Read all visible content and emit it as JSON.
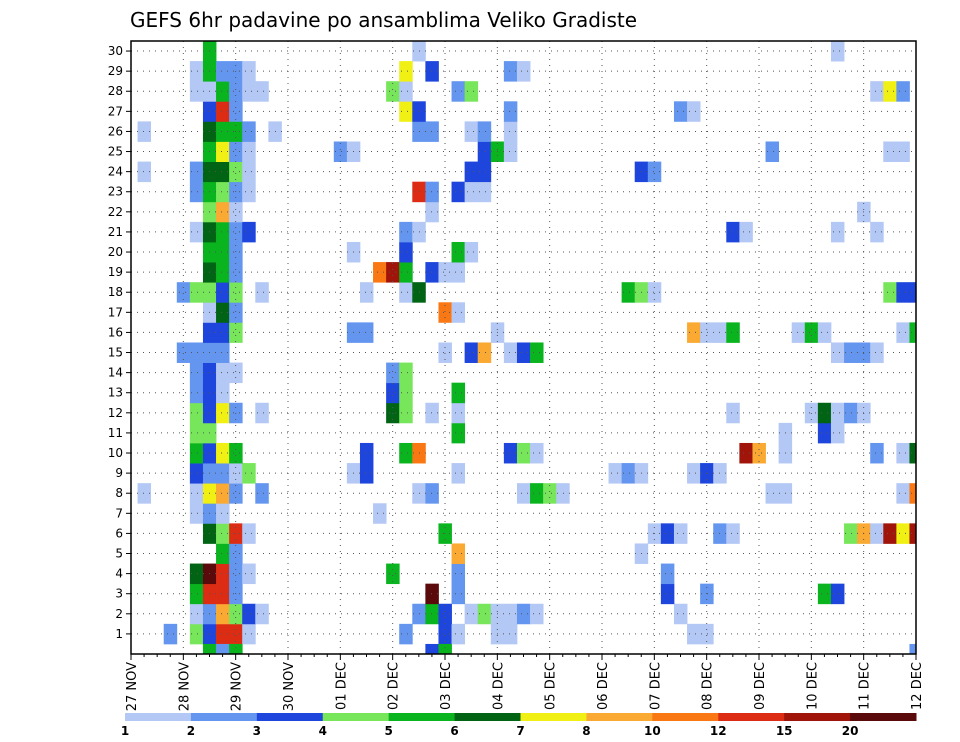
{
  "chart_data": {
    "type": "heatmap",
    "title": "GEFS 6hr padavine po ansamblima Veliko Gradiste",
    "y_ticks": [
      1,
      2,
      3,
      4,
      5,
      6,
      7,
      8,
      9,
      10,
      11,
      12,
      13,
      14,
      15,
      16,
      17,
      18,
      19,
      20,
      21,
      22,
      23,
      24,
      25,
      26,
      27,
      28,
      29,
      30
    ],
    "x_ticks": [
      "27 NOV",
      "28 NOV",
      "29 NOV",
      "30 NOV",
      "01 DEC",
      "02 DEC",
      "03 DEC",
      "04 DEC",
      "05 DEC",
      "06 DEC",
      "07 DEC",
      "08 DEC",
      "09 DEC",
      "10 DEC",
      "11 DEC",
      "12 DEC"
    ],
    "colorbar": {
      "labels": [
        "1",
        "2",
        "3",
        "4",
        "5",
        "6",
        "7",
        "8",
        "10",
        "12",
        "15",
        "20"
      ],
      "colors": [
        "#b4c8f5",
        "#6496f0",
        "#1e46dc",
        "#78e65a",
        "#0ab41e",
        "#006414",
        "#f0f014",
        "#faaa32",
        "#fa7814",
        "#dc2d14",
        "#a0140a",
        "#5a0a0a"
      ]
    },
    "step_hours": 6,
    "members_axis": "y",
    "time_axis": "x",
    "grid": true,
    "cells": [
      [
        1,
        3,
        2
      ],
      [
        1,
        5,
        4
      ],
      [
        1,
        6,
        3
      ],
      [
        1,
        7,
        10
      ],
      [
        1,
        8,
        10
      ],
      [
        1,
        9,
        1
      ],
      [
        1,
        21,
        2
      ],
      [
        1,
        24,
        3
      ],
      [
        1,
        25,
        1
      ],
      [
        1,
        28,
        1
      ],
      [
        1,
        29,
        1
      ],
      [
        1,
        43,
        1
      ],
      [
        1,
        44,
        1
      ],
      [
        2,
        5,
        1
      ],
      [
        2,
        6,
        2
      ],
      [
        2,
        7,
        8
      ],
      [
        2,
        8,
        4
      ],
      [
        2,
        9,
        3
      ],
      [
        2,
        10,
        1
      ],
      [
        2,
        22,
        2
      ],
      [
        2,
        23,
        5
      ],
      [
        2,
        24,
        3
      ],
      [
        2,
        26,
        1
      ],
      [
        2,
        27,
        4
      ],
      [
        2,
        28,
        1
      ],
      [
        2,
        29,
        1
      ],
      [
        2,
        30,
        2
      ],
      [
        2,
        31,
        1
      ],
      [
        2,
        42,
        1
      ],
      [
        3,
        5,
        5
      ],
      [
        3,
        6,
        10
      ],
      [
        3,
        7,
        10
      ],
      [
        3,
        8,
        2
      ],
      [
        3,
        23,
        12
      ],
      [
        3,
        25,
        2
      ],
      [
        3,
        41,
        3
      ],
      [
        3,
        44,
        2
      ],
      [
        3,
        53,
        5
      ],
      [
        3,
        54,
        3
      ],
      [
        4,
        5,
        6
      ],
      [
        4,
        6,
        12
      ],
      [
        4,
        7,
        10
      ],
      [
        4,
        8,
        2
      ],
      [
        4,
        9,
        1
      ],
      [
        4,
        20,
        5
      ],
      [
        4,
        25,
        2
      ],
      [
        4,
        41,
        2
      ],
      [
        5,
        7,
        5
      ],
      [
        5,
        8,
        2
      ],
      [
        5,
        25,
        8
      ],
      [
        5,
        39,
        1
      ],
      [
        6,
        6,
        6
      ],
      [
        6,
        7,
        4
      ],
      [
        6,
        8,
        10
      ],
      [
        6,
        9,
        1
      ],
      [
        6,
        24,
        5
      ],
      [
        6,
        40,
        1
      ],
      [
        6,
        41,
        3
      ],
      [
        6,
        42,
        1
      ],
      [
        6,
        45,
        2
      ],
      [
        6,
        46,
        1
      ],
      [
        6,
        55,
        4
      ],
      [
        6,
        56,
        8
      ],
      [
        6,
        57,
        1
      ],
      [
        6,
        58,
        11
      ],
      [
        6,
        59,
        7
      ],
      [
        6,
        60,
        11
      ],
      [
        7,
        5,
        1
      ],
      [
        7,
        6,
        2
      ],
      [
        7,
        7,
        1
      ],
      [
        7,
        19,
        1
      ],
      [
        8,
        1,
        1
      ],
      [
        8,
        5,
        1
      ],
      [
        8,
        6,
        7
      ],
      [
        8,
        7,
        8
      ],
      [
        8,
        8,
        2
      ],
      [
        8,
        10,
        2
      ],
      [
        8,
        22,
        1
      ],
      [
        8,
        23,
        2
      ],
      [
        8,
        30,
        1
      ],
      [
        8,
        31,
        5
      ],
      [
        8,
        32,
        4
      ],
      [
        8,
        33,
        1
      ],
      [
        8,
        49,
        1
      ],
      [
        8,
        50,
        1
      ],
      [
        8,
        59,
        1
      ],
      [
        8,
        60,
        9
      ],
      [
        9,
        5,
        3
      ],
      [
        9,
        6,
        2
      ],
      [
        9,
        7,
        2
      ],
      [
        9,
        8,
        1
      ],
      [
        9,
        9,
        4
      ],
      [
        9,
        17,
        1
      ],
      [
        9,
        18,
        3
      ],
      [
        9,
        25,
        1
      ],
      [
        9,
        37,
        1
      ],
      [
        9,
        38,
        2
      ],
      [
        9,
        39,
        1
      ],
      [
        9,
        43,
        1
      ],
      [
        9,
        44,
        3
      ],
      [
        9,
        45,
        1
      ],
      [
        10,
        5,
        5
      ],
      [
        10,
        6,
        3
      ],
      [
        10,
        7,
        7
      ],
      [
        10,
        8,
        5
      ],
      [
        10,
        18,
        3
      ],
      [
        10,
        21,
        5
      ],
      [
        10,
        22,
        9
      ],
      [
        10,
        29,
        3
      ],
      [
        10,
        30,
        4
      ],
      [
        10,
        31,
        1
      ],
      [
        10,
        47,
        11
      ],
      [
        10,
        48,
        8
      ],
      [
        10,
        50,
        1
      ],
      [
        10,
        57,
        2
      ],
      [
        10,
        59,
        1
      ],
      [
        10,
        60,
        6
      ],
      [
        11,
        5,
        4
      ],
      [
        11,
        6,
        4
      ],
      [
        11,
        25,
        5
      ],
      [
        11,
        50,
        1
      ],
      [
        11,
        53,
        3
      ],
      [
        11,
        54,
        1
      ],
      [
        12,
        5,
        4
      ],
      [
        12,
        6,
        3
      ],
      [
        12,
        7,
        7
      ],
      [
        12,
        8,
        2
      ],
      [
        12,
        10,
        1
      ],
      [
        12,
        20,
        6
      ],
      [
        12,
        21,
        4
      ],
      [
        12,
        23,
        1
      ],
      [
        12,
        25,
        1
      ],
      [
        12,
        46,
        1
      ],
      [
        12,
        52,
        1
      ],
      [
        12,
        53,
        6
      ],
      [
        12,
        54,
        1
      ],
      [
        12,
        55,
        2
      ],
      [
        12,
        56,
        1
      ],
      [
        13,
        5,
        2
      ],
      [
        13,
        6,
        3
      ],
      [
        13,
        7,
        1
      ],
      [
        13,
        20,
        3
      ],
      [
        13,
        21,
        4
      ],
      [
        13,
        25,
        5
      ],
      [
        14,
        5,
        2
      ],
      [
        14,
        6,
        3
      ],
      [
        14,
        7,
        1
      ],
      [
        14,
        8,
        1
      ],
      [
        14,
        20,
        2
      ],
      [
        14,
        21,
        4
      ],
      [
        15,
        4,
        2
      ],
      [
        15,
        5,
        2
      ],
      [
        15,
        6,
        2
      ],
      [
        15,
        7,
        2
      ],
      [
        15,
        24,
        1
      ],
      [
        15,
        26,
        3
      ],
      [
        15,
        27,
        8
      ],
      [
        15,
        29,
        1
      ],
      [
        15,
        30,
        3
      ],
      [
        15,
        31,
        5
      ],
      [
        15,
        54,
        1
      ],
      [
        15,
        55,
        2
      ],
      [
        15,
        56,
        2
      ],
      [
        15,
        57,
        1
      ],
      [
        16,
        6,
        3
      ],
      [
        16,
        7,
        3
      ],
      [
        16,
        8,
        4
      ],
      [
        16,
        17,
        2
      ],
      [
        16,
        18,
        2
      ],
      [
        16,
        28,
        1
      ],
      [
        16,
        43,
        8
      ],
      [
        16,
        44,
        1
      ],
      [
        16,
        45,
        1
      ],
      [
        16,
        46,
        5
      ],
      [
        16,
        51,
        1
      ],
      [
        16,
        52,
        5
      ],
      [
        16,
        53,
        1
      ],
      [
        16,
        59,
        1
      ],
      [
        16,
        60,
        5
      ],
      [
        17,
        6,
        1
      ],
      [
        17,
        7,
        6
      ],
      [
        17,
        8,
        2
      ],
      [
        17,
        24,
        9
      ],
      [
        17,
        25,
        1
      ],
      [
        18,
        4,
        2
      ],
      [
        18,
        5,
        4
      ],
      [
        18,
        6,
        4
      ],
      [
        18,
        7,
        3
      ],
      [
        18,
        8,
        4
      ],
      [
        18,
        10,
        1
      ],
      [
        18,
        18,
        1
      ],
      [
        18,
        21,
        1
      ],
      [
        18,
        22,
        6
      ],
      [
        18,
        38,
        5
      ],
      [
        18,
        39,
        4
      ],
      [
        18,
        40,
        1
      ],
      [
        18,
        58,
        4
      ],
      [
        18,
        59,
        3
      ],
      [
        18,
        60,
        3
      ],
      [
        19,
        6,
        6
      ],
      [
        19,
        7,
        5
      ],
      [
        19,
        8,
        2
      ],
      [
        19,
        19,
        9
      ],
      [
        19,
        20,
        11
      ],
      [
        19,
        21,
        5
      ],
      [
        19,
        23,
        3
      ],
      [
        19,
        24,
        1
      ],
      [
        19,
        25,
        1
      ],
      [
        20,
        6,
        5
      ],
      [
        20,
        7,
        5
      ],
      [
        20,
        8,
        2
      ],
      [
        20,
        17,
        1
      ],
      [
        20,
        21,
        3
      ],
      [
        20,
        25,
        5
      ],
      [
        20,
        26,
        1
      ],
      [
        21,
        5,
        1
      ],
      [
        21,
        6,
        6
      ],
      [
        21,
        7,
        5
      ],
      [
        21,
        8,
        2
      ],
      [
        21,
        9,
        3
      ],
      [
        21,
        21,
        2
      ],
      [
        21,
        22,
        1
      ],
      [
        21,
        46,
        3
      ],
      [
        21,
        47,
        1
      ],
      [
        21,
        54,
        1
      ],
      [
        21,
        57,
        1
      ],
      [
        22,
        6,
        4
      ],
      [
        22,
        7,
        8
      ],
      [
        22,
        8,
        1
      ],
      [
        22,
        23,
        1
      ],
      [
        22,
        56,
        1
      ],
      [
        23,
        5,
        2
      ],
      [
        23,
        6,
        5
      ],
      [
        23,
        7,
        4
      ],
      [
        23,
        8,
        2
      ],
      [
        23,
        9,
        1
      ],
      [
        23,
        22,
        10
      ],
      [
        23,
        23,
        2
      ],
      [
        23,
        25,
        3
      ],
      [
        23,
        26,
        1
      ],
      [
        23,
        27,
        1
      ],
      [
        24,
        1,
        1
      ],
      [
        24,
        5,
        2
      ],
      [
        24,
        6,
        6
      ],
      [
        24,
        7,
        6
      ],
      [
        24,
        8,
        4
      ],
      [
        24,
        9,
        1
      ],
      [
        24,
        26,
        3
      ],
      [
        24,
        27,
        3
      ],
      [
        24,
        39,
        3
      ],
      [
        24,
        40,
        2
      ],
      [
        25,
        6,
        5
      ],
      [
        25,
        7,
        7
      ],
      [
        25,
        8,
        2
      ],
      [
        25,
        9,
        1
      ],
      [
        25,
        16,
        2
      ],
      [
        25,
        17,
        1
      ],
      [
        25,
        27,
        3
      ],
      [
        25,
        28,
        5
      ],
      [
        25,
        29,
        1
      ],
      [
        25,
        49,
        2
      ],
      [
        25,
        58,
        1
      ],
      [
        25,
        59,
        1
      ],
      [
        26,
        1,
        1
      ],
      [
        26,
        6,
        6
      ],
      [
        26,
        7,
        5
      ],
      [
        26,
        8,
        5
      ],
      [
        26,
        9,
        2
      ],
      [
        26,
        11,
        1
      ],
      [
        26,
        22,
        2
      ],
      [
        26,
        23,
        2
      ],
      [
        26,
        26,
        1
      ],
      [
        26,
        27,
        2
      ],
      [
        26,
        29,
        1
      ],
      [
        27,
        6,
        3
      ],
      [
        27,
        7,
        10
      ],
      [
        27,
        8,
        2
      ],
      [
        27,
        21,
        7
      ],
      [
        27,
        22,
        3
      ],
      [
        27,
        29,
        2
      ],
      [
        27,
        42,
        2
      ],
      [
        27,
        43,
        1
      ],
      [
        28,
        5,
        1
      ],
      [
        28,
        6,
        1
      ],
      [
        28,
        7,
        5
      ],
      [
        28,
        8,
        2
      ],
      [
        28,
        9,
        1
      ],
      [
        28,
        10,
        1
      ],
      [
        28,
        20,
        4
      ],
      [
        28,
        21,
        1
      ],
      [
        28,
        25,
        2
      ],
      [
        28,
        26,
        4
      ],
      [
        28,
        57,
        1
      ],
      [
        28,
        58,
        7
      ],
      [
        28,
        59,
        2
      ],
      [
        29,
        5,
        1
      ],
      [
        29,
        6,
        5
      ],
      [
        29,
        7,
        2
      ],
      [
        29,
        8,
        2
      ],
      [
        29,
        9,
        1
      ],
      [
        29,
        21,
        7
      ],
      [
        29,
        23,
        3
      ],
      [
        29,
        29,
        2
      ],
      [
        29,
        30,
        1
      ],
      [
        30,
        6,
        5
      ],
      [
        30,
        22,
        1
      ],
      [
        30,
        54,
        1
      ],
      [
        0,
        6,
        5
      ],
      [
        0,
        7,
        2
      ],
      [
        0,
        8,
        5
      ],
      [
        0,
        23,
        3
      ],
      [
        0,
        24,
        5
      ],
      [
        0,
        60,
        2
      ]
    ]
  }
}
